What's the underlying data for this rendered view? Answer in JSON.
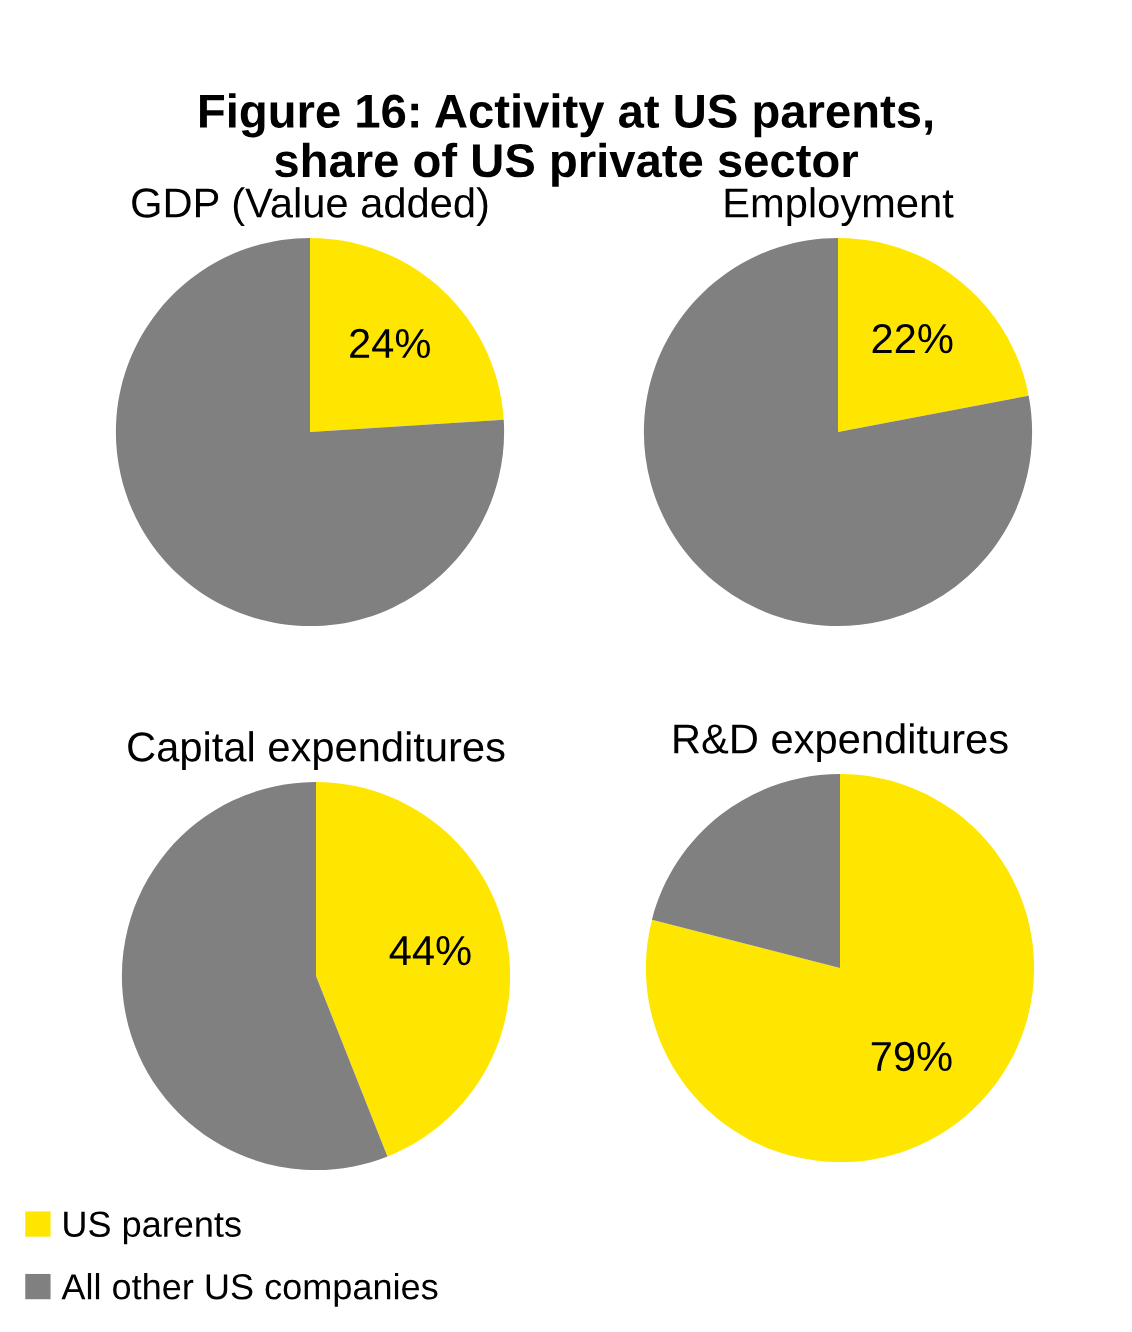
{
  "chart_data": [
    {
      "type": "other",
      "title": "Figure 16: Activity at US parents,\nshare of US private sector"
    },
    {
      "type": "pie",
      "title": "GDP (Value added)",
      "categories": [
        "US parents",
        "All other US companies"
      ],
      "values": [
        24,
        76
      ],
      "colors": [
        "#ffe600",
        "#808080"
      ],
      "value_labels": [
        "24%",
        null
      ],
      "legend": "bottom left"
    },
    {
      "type": "pie",
      "title": "Employment",
      "categories": [
        null,
        null
      ],
      "values": [
        22,
        78
      ],
      "colors": [
        "#ffe600",
        "#808080"
      ],
      "value_labels": [
        "22%",
        null
      ]
    },
    {
      "type": "pie",
      "title": "Capital expenditures",
      "categories": [
        null,
        null
      ],
      "values": [
        44,
        56
      ],
      "colors": [
        "#ffe600",
        "#808080"
      ],
      "value_labels": [
        "44%",
        null
      ]
    },
    {
      "type": "pie",
      "title": "R&D expenditures",
      "categories": [
        null,
        null
      ],
      "values": [
        79,
        21
      ],
      "colors": [
        "#ffe600",
        "#808080"
      ],
      "value_labels": [
        "79%",
        null
      ]
    }
  ]
}
